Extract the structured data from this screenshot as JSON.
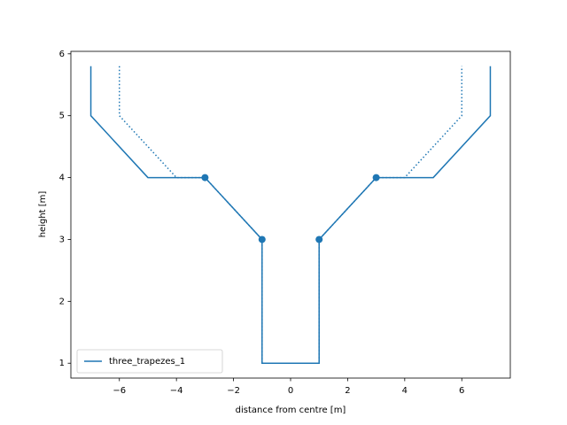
{
  "chart_data": {
    "type": "line",
    "xlabel": "distance from centre [m]",
    "ylabel": "height [m]",
    "series": [
      {
        "name": "three_trapezes_1",
        "color": "#1f77b4",
        "style": "solid",
        "x": [
          -7,
          -7,
          -5,
          -3,
          -1,
          -1,
          1,
          1,
          3,
          5,
          7,
          7
        ],
        "values": [
          5.8,
          5,
          4,
          4,
          3,
          1,
          1,
          3,
          4,
          4,
          5,
          5.8
        ]
      },
      {
        "color": "#1f77b4",
        "style": "dotted",
        "x": [
          -6,
          -6,
          -4,
          -3,
          -1,
          -1,
          1,
          1,
          3,
          4,
          6,
          6
        ],
        "values": [
          5.8,
          5,
          4,
          4,
          3,
          1,
          1,
          3,
          4,
          4,
          5,
          5.8
        ]
      },
      {
        "color": "#1f77b4",
        "style": "markers",
        "x": [
          -3,
          -1,
          1,
          3
        ],
        "values": [
          4,
          3,
          3,
          4
        ]
      }
    ],
    "xlim": [
      -7.7,
      7.7
    ],
    "ylim": [
      0.76,
      6.04
    ],
    "xticks": [
      {
        "value": -6,
        "label": "−6"
      },
      {
        "value": -4,
        "label": "−4"
      },
      {
        "value": -2,
        "label": "−2"
      },
      0,
      2,
      4,
      6
    ],
    "yticks": [
      1,
      2,
      3,
      4,
      5,
      6
    ],
    "grid": false,
    "legend": "lower left"
  }
}
